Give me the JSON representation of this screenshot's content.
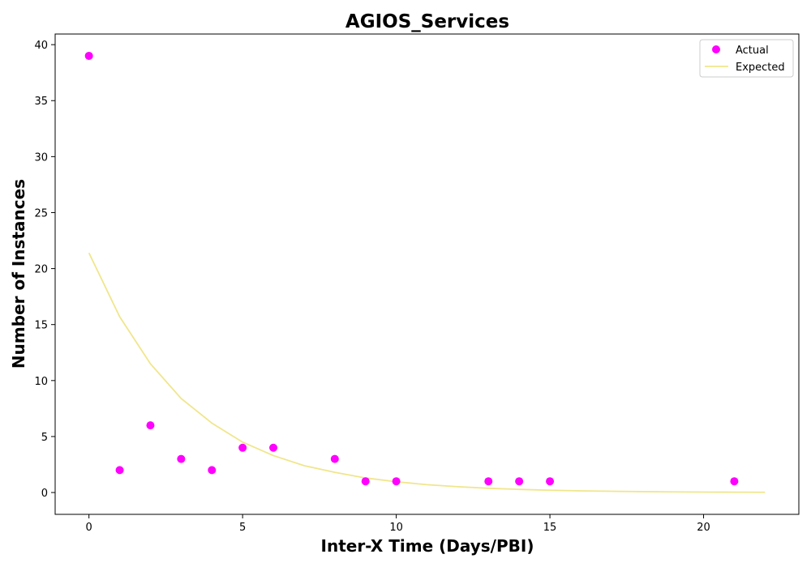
{
  "chart_data": {
    "type": "scatter",
    "title": "AGIOS_Services",
    "xlabel": "Inter-X Time (Days/PBI)",
    "ylabel": "Number of Instances",
    "xlim": [
      -1.1,
      23.1
    ],
    "ylim": [
      -1.95,
      40.95
    ],
    "xticks": [
      0,
      5,
      10,
      15,
      20
    ],
    "yticks": [
      0,
      5,
      10,
      15,
      20,
      25,
      30,
      35,
      40
    ],
    "grid": false,
    "legend_position": "top-right",
    "series": [
      {
        "name": "Actual",
        "kind": "scatter",
        "color": "#ff00ff",
        "points": [
          {
            "x": 0,
            "y": 39
          },
          {
            "x": 1,
            "y": 2
          },
          {
            "x": 2,
            "y": 6
          },
          {
            "x": 3,
            "y": 3
          },
          {
            "x": 4,
            "y": 2
          },
          {
            "x": 5,
            "y": 4
          },
          {
            "x": 6,
            "y": 4
          },
          {
            "x": 8,
            "y": 3
          },
          {
            "x": 9,
            "y": 1
          },
          {
            "x": 10,
            "y": 1
          },
          {
            "x": 13,
            "y": 1
          },
          {
            "x": 14,
            "y": 1
          },
          {
            "x": 15,
            "y": 1
          },
          {
            "x": 21,
            "y": 1
          }
        ]
      },
      {
        "name": "Expected",
        "kind": "line",
        "color": "#f0e68c",
        "points": [
          {
            "x": 0,
            "y": 21.4
          },
          {
            "x": 1,
            "y": 15.7
          },
          {
            "x": 2,
            "y": 11.5
          },
          {
            "x": 3,
            "y": 8.4
          },
          {
            "x": 4,
            "y": 6.2
          },
          {
            "x": 5,
            "y": 4.5
          },
          {
            "x": 6,
            "y": 3.3
          },
          {
            "x": 7,
            "y": 2.4
          },
          {
            "x": 8,
            "y": 1.8
          },
          {
            "x": 9,
            "y": 1.3
          },
          {
            "x": 10,
            "y": 0.96
          },
          {
            "x": 11,
            "y": 0.7
          },
          {
            "x": 12,
            "y": 0.52
          },
          {
            "x": 13,
            "y": 0.38
          },
          {
            "x": 14,
            "y": 0.28
          },
          {
            "x": 15,
            "y": 0.2
          },
          {
            "x": 16,
            "y": 0.15
          },
          {
            "x": 17,
            "y": 0.11
          },
          {
            "x": 18,
            "y": 0.08
          },
          {
            "x": 19,
            "y": 0.06
          },
          {
            "x": 20,
            "y": 0.04
          },
          {
            "x": 21,
            "y": 0.03
          },
          {
            "x": 22,
            "y": 0.02
          }
        ]
      }
    ]
  }
}
